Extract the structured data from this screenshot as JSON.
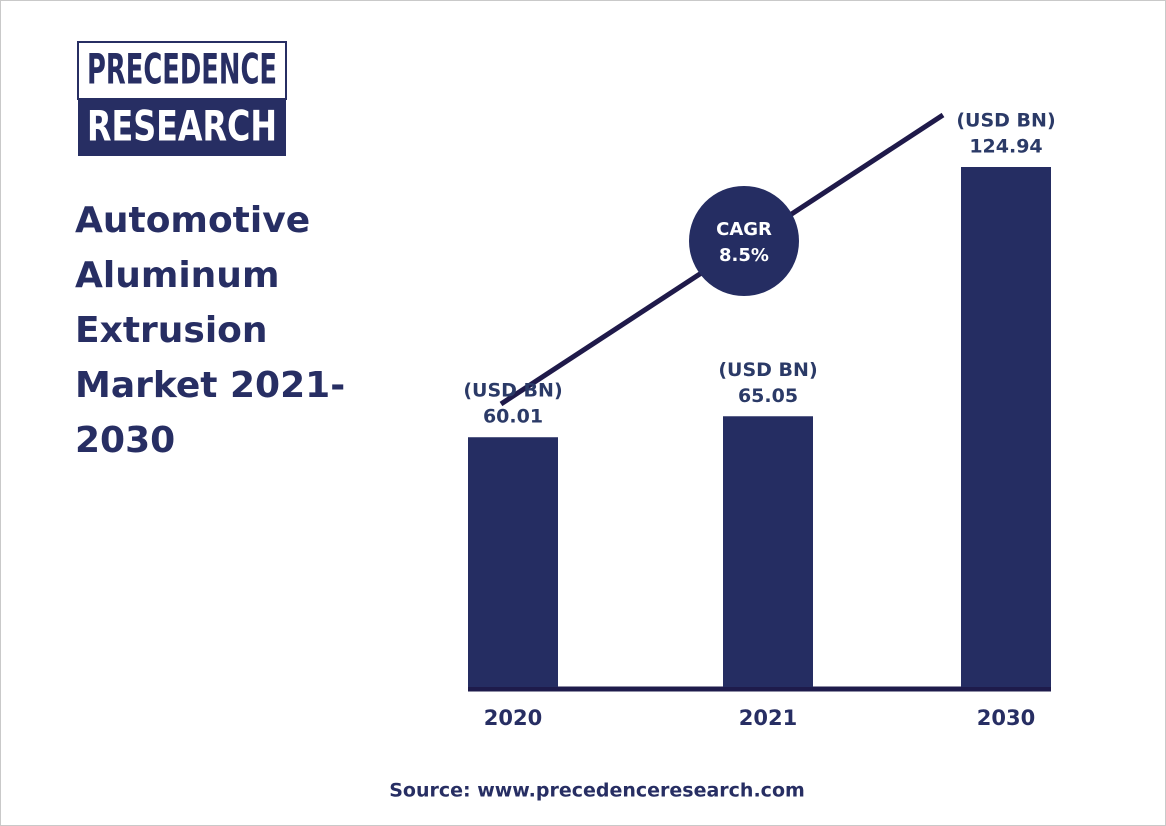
{
  "logo": {
    "line1": "PRECEDENCE",
    "line2": "RESEARCH"
  },
  "chart_data": {
    "type": "bar",
    "title": "Automotive Aluminum Extrusion Market 2021-2030",
    "categories": [
      "2020",
      "2021",
      "2030"
    ],
    "values": [
      60.01,
      65.05,
      124.94
    ],
    "unit_label": "(USD BN)",
    "color": "#252d62",
    "annotation": {
      "label": "CAGR",
      "value": "8.5%"
    }
  },
  "source": "Source: www.precedenceresearch.com"
}
